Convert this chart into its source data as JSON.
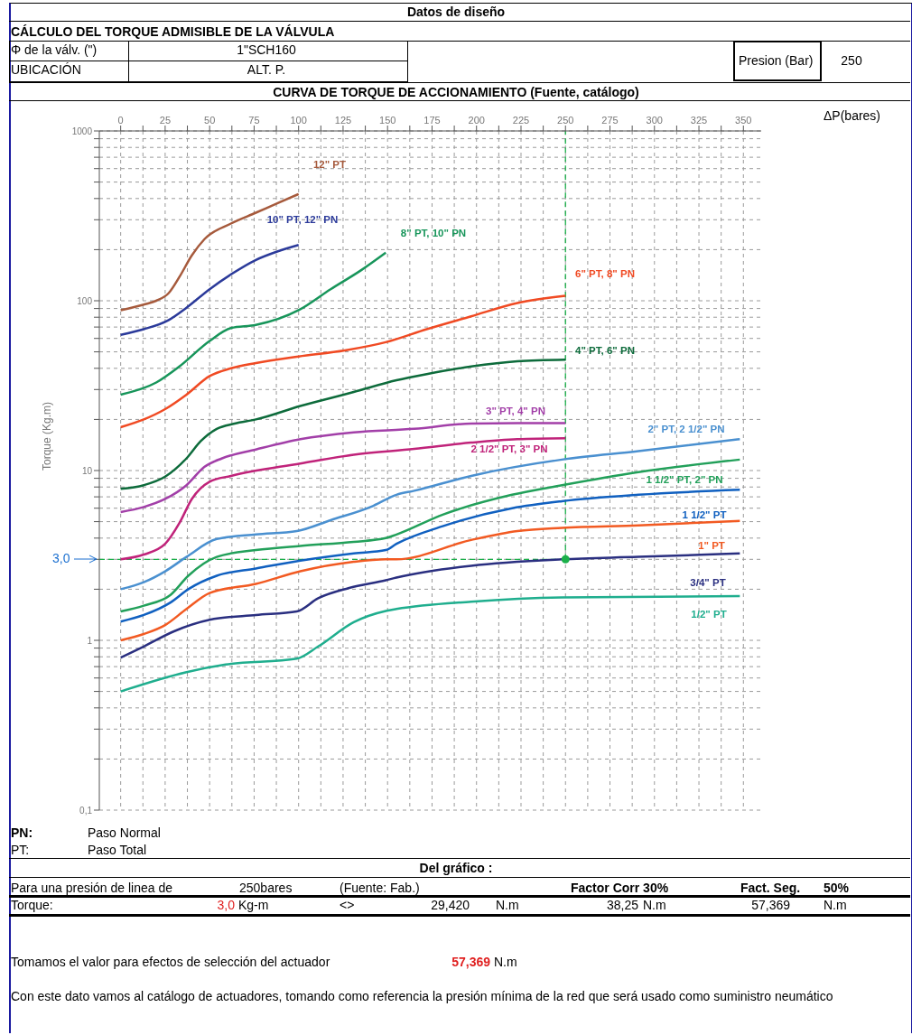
{
  "chart_data": {
    "type": "line",
    "title": "CURVA DE TORQUE DE ACCIONAMIENTO (Fuente, catálogo)",
    "xlabel": "ΔP(bares)",
    "ylabel": "Torque (Kg.m)",
    "log": "y",
    "grid": true,
    "xlim": [
      -12,
      360
    ],
    "ylim": [
      0.1,
      1000
    ],
    "xticks": [
      0,
      {
        "value": 12.5,
        "label": null
      },
      25,
      {
        "value": 37.5,
        "label": null
      },
      50,
      {
        "value": 62.5,
        "label": null
      },
      75,
      {
        "value": 87.5,
        "label": null
      },
      100,
      {
        "value": 112.5,
        "label": null
      },
      125,
      {
        "value": 137.5,
        "label": null
      },
      150,
      {
        "value": 162.5,
        "label": null
      },
      175,
      {
        "value": 187.5,
        "label": null
      },
      200,
      {
        "value": 212.5,
        "label": null
      },
      225,
      {
        "value": 237.5,
        "label": null
      },
      250,
      {
        "value": 262.5,
        "label": null
      },
      275,
      {
        "value": 287.5,
        "label": null
      },
      300,
      {
        "value": 312.5,
        "label": null
      },
      325,
      {
        "value": 337.5,
        "label": null
      },
      350
    ],
    "yticks": [
      {
        "value": 0.1,
        "label": "0,1"
      },
      {
        "value": 0.2,
        "label": null
      },
      {
        "value": 0.3,
        "label": null
      },
      {
        "value": 0.4,
        "label": null
      },
      {
        "value": 0.5,
        "label": null
      },
      {
        "value": 0.6,
        "label": null
      },
      {
        "value": 0.7,
        "label": null
      },
      {
        "value": 0.8,
        "label": null
      },
      {
        "value": 0.9,
        "label": null
      },
      1,
      {
        "value": 2,
        "label": null
      },
      {
        "value": 3,
        "label": null
      },
      {
        "value": 4,
        "label": null
      },
      {
        "value": 5,
        "label": null
      },
      {
        "value": 6,
        "label": null
      },
      {
        "value": 7,
        "label": null
      },
      {
        "value": 8,
        "label": null
      },
      {
        "value": 9,
        "label": null
      },
      10,
      {
        "value": 20,
        "label": null
      },
      {
        "value": 30,
        "label": null
      },
      {
        "value": 40,
        "label": null
      },
      {
        "value": 50,
        "label": null
      },
      {
        "value": 60,
        "label": null
      },
      {
        "value": 70,
        "label": null
      },
      {
        "value": 80,
        "label": null
      },
      {
        "value": 90,
        "label": null
      },
      100,
      {
        "value": 200,
        "label": null
      },
      {
        "value": 300,
        "label": null
      },
      {
        "value": 400,
        "label": null
      },
      {
        "value": 500,
        "label": null
      },
      {
        "value": 600,
        "label": null
      },
      {
        "value": 700,
        "label": null
      },
      {
        "value": 800,
        "label": null
      },
      {
        "value": 900,
        "label": null
      },
      1000
    ],
    "series": [
      {
        "name": "12\" PT",
        "color": "#a65a3c",
        "x": [
          0,
          13,
          20,
          27,
          33,
          40,
          47,
          62,
          76,
          88,
          100
        ],
        "values": [
          88,
          95,
          100,
          111,
          138,
          185,
          230,
          285,
          330,
          375,
          425
        ]
      },
      {
        "name": "10\" PT, 12\" PN",
        "color": "#2b3a9a",
        "x": [
          0,
          13,
          27,
          37,
          50,
          62,
          76,
          88,
          100
        ],
        "values": [
          63,
          68,
          77,
          91,
          117,
          143,
          174,
          195,
          213
        ]
      },
      {
        "name": "8\" PT, 10\" PN",
        "color": "#17955a",
        "x": [
          0,
          20,
          33,
          50,
          62,
          76,
          100,
          118,
          135,
          149
        ],
        "values": [
          28,
          33,
          41,
          58,
          69,
          72,
          88,
          117,
          151,
          192
        ]
      },
      {
        "name": "6\" PT, 8\" PN",
        "color": "#f04a23",
        "x": [
          0,
          13,
          25,
          37,
          50,
          62,
          76,
          100,
          126,
          149,
          172,
          197,
          223,
          250
        ],
        "values": [
          18,
          20,
          23,
          28,
          36,
          40,
          43,
          47,
          51,
          57,
          68,
          81,
          97,
          107
        ]
      },
      {
        "name": "4\" PT, 6\" PN",
        "color": "#0d6b3b",
        "x": [
          0,
          13,
          25,
          37,
          45,
          54,
          64,
          76,
          101,
          131,
          155,
          172,
          197,
          223,
          250
        ],
        "values": [
          7.8,
          8.2,
          9.2,
          11.8,
          14.9,
          17.6,
          18.9,
          20,
          24,
          29,
          34,
          37,
          41,
          44,
          45
        ]
      },
      {
        "name": "3\" PT, 4\" PN",
        "color": "#a23fa8",
        "x": [
          0,
          13,
          25,
          37,
          47,
          57,
          76,
          101,
          131,
          165,
          197,
          223,
          250
        ],
        "values": [
          5.7,
          6.1,
          6.8,
          8.2,
          10.5,
          11.8,
          13.3,
          15.3,
          16.8,
          17.6,
          18.9,
          19,
          19
        ]
      },
      {
        "name": "2 1/2\" PT, 3\" PN",
        "color": "#c0237a",
        "x": [
          0,
          13,
          25,
          33,
          40,
          50,
          62,
          101,
          131,
          165,
          197,
          223,
          250
        ],
        "values": [
          3.0,
          3.2,
          3.7,
          4.9,
          6.8,
          8.6,
          9.3,
          11,
          12.4,
          13.4,
          14.6,
          15.3,
          15.5
        ]
      },
      {
        "name": "2\" PT, 2 1/2\" PN",
        "color": "#4a90d0",
        "x": [
          0,
          13,
          25,
          37,
          54,
          76,
          99,
          118,
          142,
          155,
          165,
          197,
          248,
          291,
          348
        ],
        "values": [
          2.0,
          2.2,
          2.55,
          3.1,
          3.95,
          4.2,
          4.4,
          5.1,
          6.2,
          7.2,
          7.6,
          9.3,
          11.6,
          13,
          15.3
        ]
      },
      {
        "name": "1 1/2\" PT, 2\" PN",
        "color": "#22a05a",
        "x": [
          0,
          13,
          28,
          38,
          54,
          76,
          101,
          131,
          149,
          155,
          181,
          220,
          248,
          291,
          348
        ],
        "values": [
          1.48,
          1.6,
          1.85,
          2.4,
          3.1,
          3.4,
          3.6,
          3.8,
          4.0,
          4.2,
          5.5,
          7.2,
          8.2,
          9.8,
          11.6
        ]
      },
      {
        "name": "1 1/2\" PT",
        "color": "#1060c0",
        "x": [
          0,
          13,
          28,
          38,
          54,
          76,
          101,
          131,
          149,
          155,
          181,
          220,
          248,
          291,
          348
        ],
        "values": [
          1.29,
          1.41,
          1.67,
          2.0,
          2.4,
          2.65,
          2.95,
          3.25,
          3.4,
          3.7,
          4.7,
          6.0,
          6.6,
          7.2,
          7.7
        ]
      },
      {
        "name": "1\" PT",
        "color": "#f25a22",
        "x": [
          0,
          13,
          25,
          37,
          50,
          76,
          101,
          131,
          149,
          155,
          197,
          223,
          248,
          291,
          348
        ],
        "values": [
          1.0,
          1.09,
          1.23,
          1.53,
          1.9,
          2.15,
          2.55,
          2.9,
          3.0,
          3.0,
          3.9,
          4.4,
          4.6,
          4.75,
          5.05
        ]
      },
      {
        "name": "3/4\" PT",
        "color": "#2a2f80",
        "x": [
          0,
          13,
          30,
          50,
          76,
          99,
          111,
          128,
          149,
          155,
          197,
          248,
          291,
          348
        ],
        "values": [
          0.79,
          0.92,
          1.13,
          1.32,
          1.41,
          1.48,
          1.77,
          2.03,
          2.26,
          2.34,
          2.75,
          3.0,
          3.1,
          3.25
        ]
      },
      {
        "name": "1/2\" PT",
        "color": "#1fae8e",
        "x": [
          0,
          37,
          59,
          99,
          111,
          131,
          149,
          155,
          197,
          248,
          348
        ],
        "values": [
          0.5,
          0.65,
          0.72,
          0.78,
          0.92,
          1.28,
          1.49,
          1.53,
          1.69,
          1.79,
          1.82
        ]
      },
      {
        "type": "scatter",
        "color": "#1bb04a",
        "x": [
          250
        ],
        "values": [
          3.0
        ]
      }
    ],
    "ref_lines": [
      {
        "axis": "x",
        "value": 250,
        "color": "#1bb04a",
        "line_style": "dashed"
      },
      {
        "axis": "y",
        "value": 3.0,
        "label": "3,0",
        "color": "#1bb04a",
        "line_style": "dashed"
      }
    ],
    "annotations": [
      "Datos de diseño",
      "CÁLCULO DEL TORQUE ADMISIBLE DE LA VÁLVULA",
      "Φ de la válv. (\")",
      "1\"SCH160",
      "UBICACIÓN",
      "ALT. P.",
      "Presion (Bar)",
      "250",
      "PN:",
      "Paso Normal",
      "PT:",
      "Paso Total",
      "Del gráfico :",
      "Para una presión de linea de",
      "250bares",
      "(Fuente: Fab.)",
      "Factor Corr 30%",
      "Fact. Seg.",
      "50%",
      "Torque:",
      "3,0",
      "Kg-m",
      "<>",
      "29,420",
      "N.m",
      "38,25",
      "N.m",
      "57,369",
      "N.m",
      "Tomamos el valor para efectos de selección del actuador",
      "57,369",
      "N.m",
      "Con este dato vamos al catálogo de actuadores, tomando como referencia la presión mínima de la red que será usado como suministro neumático"
    ]
  }
}
